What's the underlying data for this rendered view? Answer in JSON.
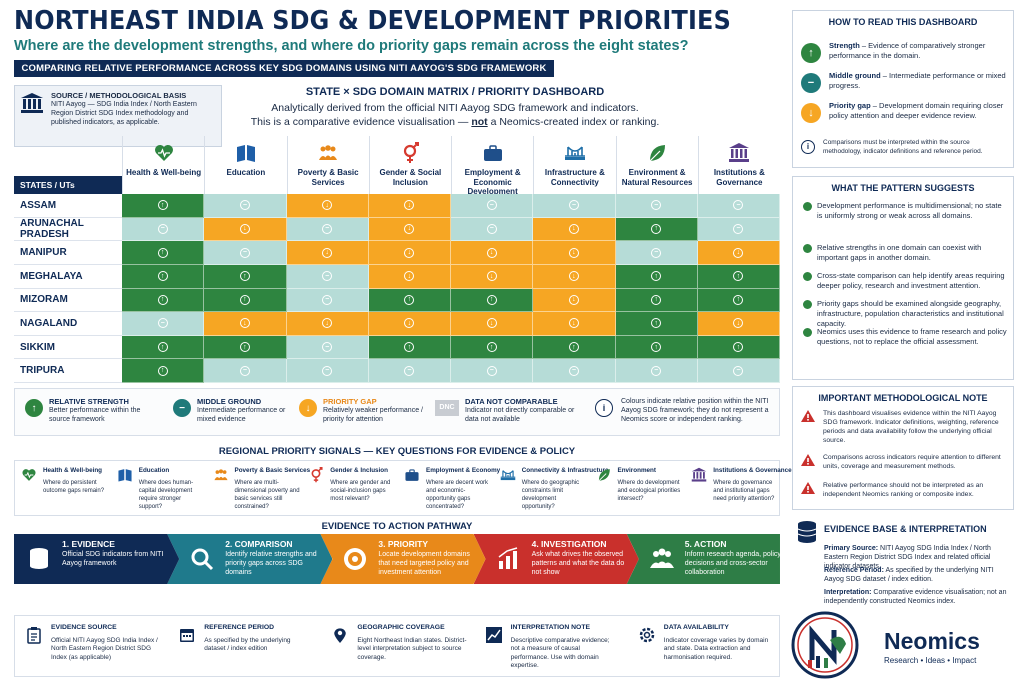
{
  "header": {
    "title": "NORTHEAST INDIA SDG & DEVELOPMENT PRIORITIES",
    "subtitle": "Where are the development strengths, and where do priority gaps remain across the eight states?",
    "banner": "COMPARING RELATIVE PERFORMANCE ACROSS KEY SDG DOMAINS USING NITI AAYOG'S SDG FRAMEWORK"
  },
  "method_box": {
    "title": "SOURCE / METHODOLOGICAL BASIS",
    "body": "NITI Aayog — SDG India Index / North Eastern Region District SDG Index methodology and published indicators, as applicable."
  },
  "center": {
    "title": "STATE × SDG DOMAIN MATRIX / PRIORITY DASHBOARD",
    "line1": "Analytically derived from the official NITI Aayog SDG framework and indicators.",
    "line2_pre": "This is a comparative evidence visualisation — ",
    "line2_u": "not",
    "line2_post": " a Neomics-created index or ranking."
  },
  "matrix": {
    "states_label": "STATES / UTs",
    "domains": [
      {
        "label": "Health & Well-being",
        "icon": "heart-pulse-icon",
        "color": "#2e8540"
      },
      {
        "label": "Education",
        "icon": "book-icon",
        "color": "#1f5fa8"
      },
      {
        "label": "Poverty & Basic Services",
        "icon": "people-icon",
        "color": "#e8891a"
      },
      {
        "label": "Gender & Social Inclusion",
        "icon": "gender-icon",
        "color": "#d63a2f"
      },
      {
        "label": "Employment & Economic Development",
        "icon": "briefcase-icon",
        "color": "#1f4f8a"
      },
      {
        "label": "Infrastructure & Connectivity",
        "icon": "bridge-icon",
        "color": "#1f6fa8"
      },
      {
        "label": "Environment & Natural Resources",
        "icon": "leaf-icon",
        "color": "#2e8540"
      },
      {
        "label": "Institutions & Governance",
        "icon": "institution-icon",
        "color": "#5a3f8a"
      }
    ],
    "rows": [
      {
        "state": "ASSAM",
        "cells": [
          "S",
          "M",
          "P",
          "P",
          "M",
          "M",
          "M",
          "M"
        ]
      },
      {
        "state": "ARUNACHAL PRADESH",
        "cells": [
          "M",
          "P",
          "M",
          "P",
          "M",
          "P",
          "S",
          "M"
        ]
      },
      {
        "state": "MANIPUR",
        "cells": [
          "S",
          "M",
          "P",
          "P",
          "P",
          "P",
          "M",
          "P"
        ]
      },
      {
        "state": "MEGHALAYA",
        "cells": [
          "S",
          "S",
          "M",
          "P",
          "P",
          "P",
          "S",
          "S"
        ]
      },
      {
        "state": "MIZORAM",
        "cells": [
          "S",
          "S",
          "M",
          "S",
          "S",
          "P",
          "S",
          "S"
        ]
      },
      {
        "state": "NAGALAND",
        "cells": [
          "M",
          "P",
          "P",
          "P",
          "P",
          "P",
          "S",
          "P"
        ]
      },
      {
        "state": "SIKKIM",
        "cells": [
          "S",
          "S",
          "M",
          "S",
          "S",
          "S",
          "S",
          "S"
        ]
      },
      {
        "state": "TRIPURA",
        "cells": [
          "S",
          "M",
          "M",
          "M",
          "M",
          "M",
          "M",
          "M"
        ]
      }
    ],
    "codes": {
      "S": {
        "class": "c-s",
        "glyph": "↑"
      },
      "M": {
        "class": "c-m",
        "glyph": "−"
      },
      "P": {
        "class": "c-p",
        "glyph": "↓"
      }
    }
  },
  "legend": {
    "strength_title": "RELATIVE STRENGTH",
    "strength_body": "Better performance within the source framework",
    "middle_title": "MIDDLE GROUND",
    "middle_body": "Intermediate performance or mixed evidence",
    "gap_title": "PRIORITY GAP",
    "gap_body": "Relatively weaker performance / priority for attention",
    "dnc_badge": "DNC",
    "dnc_title": "DATA NOT COMPARABLE",
    "dnc_body": "Indicator not directly comparable or data not available",
    "note_body": "Colours indicate relative position within the NITI Aayog SDG framework; they do not represent a Neomics score or independent ranking."
  },
  "signals": {
    "title": "REGIONAL PRIORITY SIGNALS — KEY QUESTIONS FOR EVIDENCE & POLICY",
    "items": [
      {
        "title": "Health & Well-being",
        "body": "Where do persistent outcome gaps remain?",
        "color": "#2e8540"
      },
      {
        "title": "Education",
        "body": "Where does human-capital development require stronger support?",
        "color": "#1f5fa8"
      },
      {
        "title": "Poverty & Basic Services",
        "body": "Where are multi-dimensional poverty and basic services still constrained?",
        "color": "#e8891a"
      },
      {
        "title": "Gender & Inclusion",
        "body": "Where are gender and social-inclusion gaps most relevant?",
        "color": "#d63a2f"
      },
      {
        "title": "Employment & Economy",
        "body": "Where are decent work and economic-opportunity gaps concentrated?",
        "color": "#1f4f8a"
      },
      {
        "title": "Connectivity & Infrastructure",
        "body": "Where do geographic constraints limit development opportunity?",
        "color": "#1f6fa8"
      },
      {
        "title": "Environment",
        "body": "Where do development and ecological priorities intersect?",
        "color": "#2e8540"
      },
      {
        "title": "Institutions & Governance",
        "body": "Where do governance and institutional gaps need priority attention?",
        "color": "#5a3f8a"
      }
    ]
  },
  "pathway": {
    "title": "EVIDENCE TO ACTION PATHWAY",
    "steps": [
      {
        "title": "1. EVIDENCE",
        "body": "Official SDG indicators from NITI Aayog framework",
        "color": "#0f2a55"
      },
      {
        "title": "2. COMPARISON",
        "body": "Identify relative strengths and priority gaps across SDG domains",
        "color": "#1f7a8c"
      },
      {
        "title": "3. PRIORITY",
        "body": "Locate development domains that need targeted policy and investment attention",
        "color": "#e8891a"
      },
      {
        "title": "4. INVESTIGATION",
        "body": "Ask what drives the observed patterns and what the data do not show",
        "color": "#c9302c"
      },
      {
        "title": "5. ACTION",
        "body": "Inform research agenda, policy decisions and cross-sector collaboration",
        "color": "#2e7d46"
      }
    ]
  },
  "footer": {
    "items": [
      {
        "title": "EVIDENCE SOURCE",
        "body": "Official NITI Aayog SDG India Index / North Eastern Region District SDG Index (as applicable)"
      },
      {
        "title": "REFERENCE PERIOD",
        "body": "As specified by the underlying dataset / index edition"
      },
      {
        "title": "GEOGRAPHIC COVERAGE",
        "body": "Eight Northeast Indian states. District-level interpretation subject to source coverage."
      },
      {
        "title": "INTERPRETATION NOTE",
        "body": "Descriptive comparative evidence; not a measure of causal performance. Use with domain expertise."
      },
      {
        "title": "DATA AVAILABILITY",
        "body": "Indicator coverage varies by domain and state. Data extraction and harmonisation required."
      }
    ]
  },
  "how_to_read": {
    "title": "HOW TO READ THIS DASHBOARD",
    "strength_label": "Strength",
    "strength_body": " – Evidence of comparatively stronger performance in the domain.",
    "middle_label": "Middle ground",
    "middle_body": " – Intermediate performance or mixed progress.",
    "gap_label": "Priority gap",
    "gap_body": " – Development domain requiring closer policy attention and deeper evidence review.",
    "note": "Comparisons must be interpreted within the source methodology, indicator definitions and reference period."
  },
  "pattern": {
    "title": "WHAT THE PATTERN SUGGESTS",
    "bullets": [
      "Development performance is multidimensional; no state is uniformly strong or weak across all domains.",
      "Relative strengths in one domain can coexist with important gaps in another domain.",
      "Cross-state comparison can help identify areas requiring deeper policy, research and investment attention.",
      "Priority gaps should be examined alongside geography, infrastructure, population characteristics and institutional capacity.",
      "Neomics uses this evidence to frame research and policy questions, not to replace the official assessment."
    ]
  },
  "method_note": {
    "title": "IMPORTANT METHODOLOGICAL NOTE",
    "items": [
      "This dashboard visualises evidence within the NITI Aayog SDG framework. Indicator definitions, weighting, reference periods and data availability follow the underlying official source.",
      "Comparisons across indicators require attention to different units, coverage and measurement methods.",
      "Relative performance should not be interpreted as an independent Neomics ranking or composite index."
    ]
  },
  "evidence": {
    "title": "EVIDENCE BASE & INTERPRETATION",
    "primary_label": "Primary Source:",
    "primary_body": " NITI Aayog SDG India Index / North Eastern Region District SDG Index and related official indicator datasets.",
    "reference_label": "Reference Period:",
    "reference_body": " As specified by the underlying NITI Aayog SDG dataset / index edition.",
    "interp_label": "Interpretation:",
    "interp_body": " Comparative evidence visualisation; not an independently constructed Neomics index."
  },
  "brand": {
    "name": "Neomics",
    "tagline": "Research • Ideas • Impact"
  }
}
